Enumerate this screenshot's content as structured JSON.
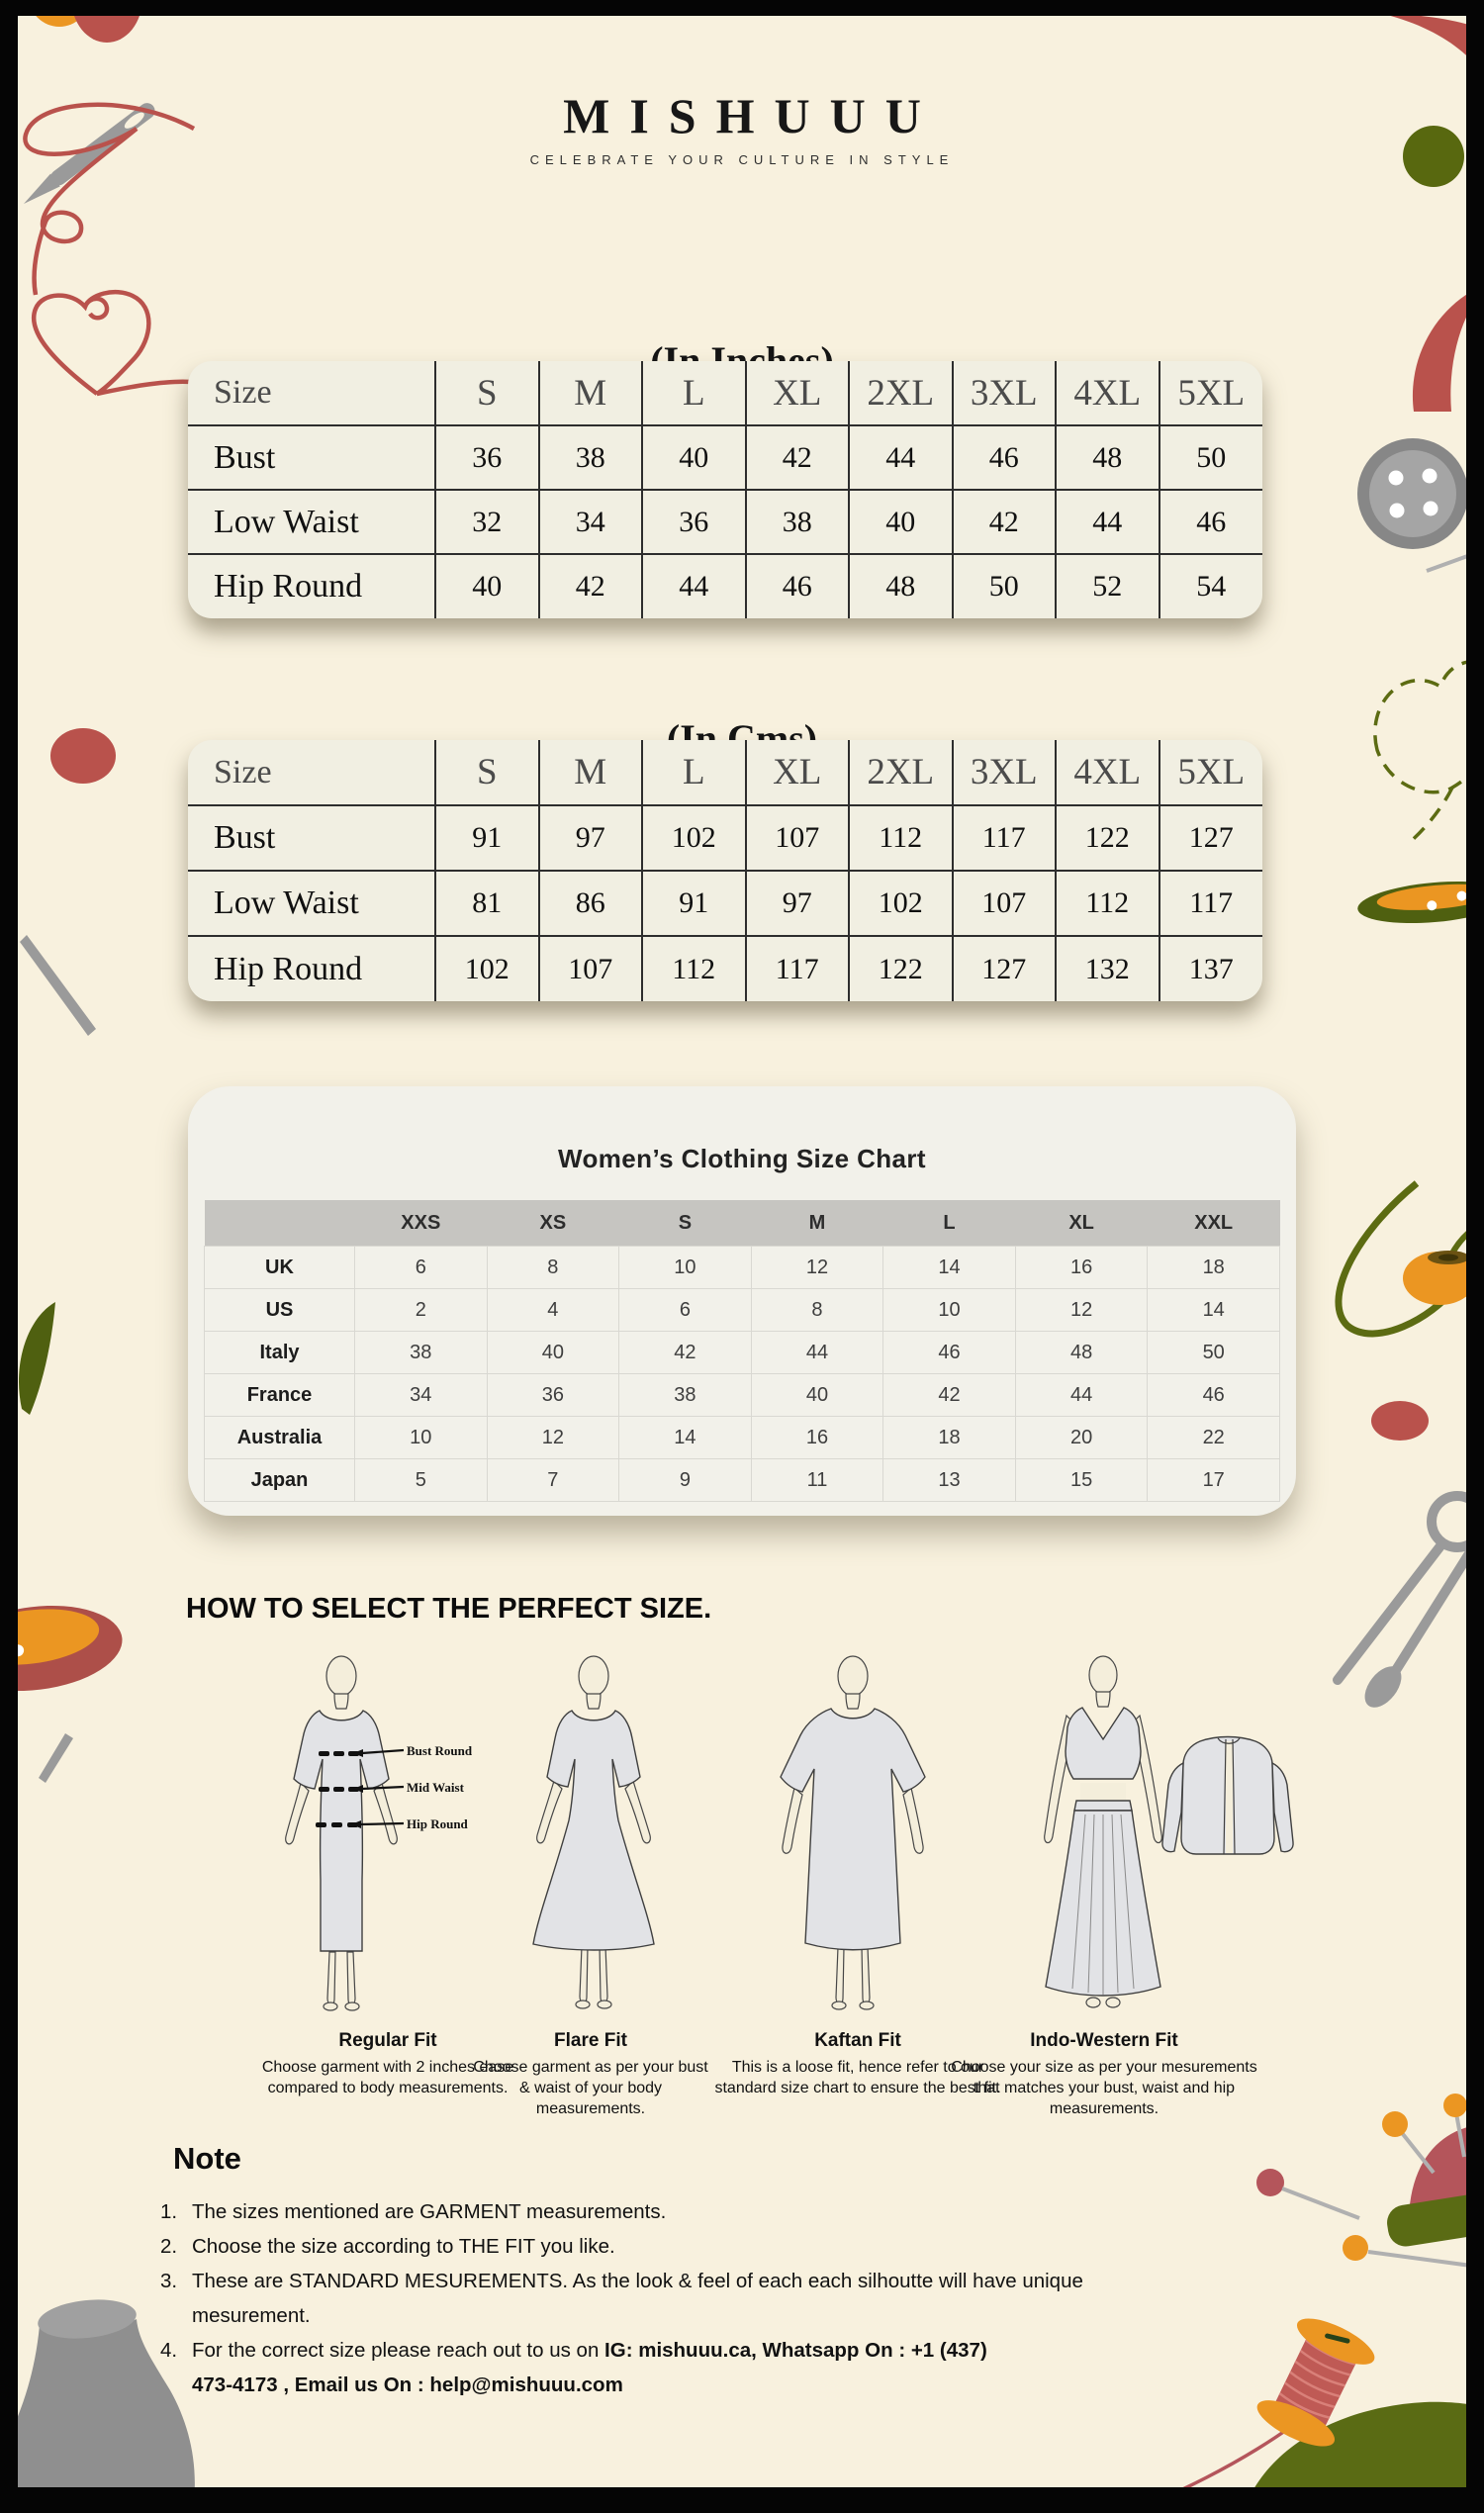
{
  "brand": {
    "logo": "MISHUUU",
    "tagline": "CELEBRATE YOUR CULTURE IN STYLE"
  },
  "inches_table": {
    "title": "(In Inches)",
    "header": [
      "Size",
      "S",
      "M",
      "L",
      "XL",
      "2XL",
      "3XL",
      "4XL",
      "5XL"
    ],
    "rows": [
      {
        "label": "Bust",
        "values": [
          36,
          38,
          40,
          42,
          44,
          46,
          48,
          50
        ]
      },
      {
        "label": "Low Waist",
        "values": [
          32,
          34,
          36,
          38,
          40,
          42,
          44,
          46
        ]
      },
      {
        "label": "Hip Round",
        "values": [
          40,
          42,
          44,
          46,
          48,
          50,
          52,
          54
        ]
      }
    ]
  },
  "cms_table": {
    "title": "(In Cms)",
    "header": [
      "Size",
      "S",
      "M",
      "L",
      "XL",
      "2XL",
      "3XL",
      "4XL",
      "5XL"
    ],
    "rows": [
      {
        "label": "Bust",
        "values": [
          91,
          97,
          102,
          107,
          112,
          117,
          122,
          127
        ]
      },
      {
        "label": "Low Waist",
        "values": [
          81,
          86,
          91,
          97,
          102,
          107,
          112,
          117
        ]
      },
      {
        "label": "Hip Round",
        "values": [
          102,
          107,
          112,
          117,
          122,
          127,
          132,
          137
        ]
      }
    ]
  },
  "womens_chart": {
    "title": "Women’s Clothing Size Chart",
    "header": [
      "",
      "XXS",
      "XS",
      "S",
      "M",
      "L",
      "XL",
      "XXL"
    ],
    "rows": [
      {
        "label": "UK",
        "values": [
          6,
          8,
          10,
          12,
          14,
          16,
          18
        ]
      },
      {
        "label": "US",
        "values": [
          2,
          4,
          6,
          8,
          10,
          12,
          14
        ]
      },
      {
        "label": "Italy",
        "values": [
          38,
          40,
          42,
          44,
          46,
          48,
          50
        ]
      },
      {
        "label": "France",
        "values": [
          34,
          36,
          38,
          40,
          42,
          44,
          46
        ]
      },
      {
        "label": "Australia",
        "values": [
          10,
          12,
          14,
          16,
          18,
          20,
          22
        ]
      },
      {
        "label": "Japan",
        "values": [
          5,
          7,
          9,
          11,
          13,
          15,
          17
        ]
      }
    ]
  },
  "fit_section": {
    "heading": "HOW TO SELECT THE PERFECT SIZE.",
    "measure_labels": [
      "Bust Round",
      "Mid Waist",
      "Hip Round"
    ],
    "fits": [
      {
        "name": "Regular Fit",
        "description": "Choose garment with 2 inches ease compared to body measurements."
      },
      {
        "name": "Flare Fit",
        "description": "Choose garment as per your bust & waist of your body measurements."
      },
      {
        "name": "Kaftan Fit",
        "description": "This is a loose fit, hence refer to our standard size chart to ensure the best fit."
      },
      {
        "name": "Indo-Western Fit",
        "description": "Choose your size as per your mesurements that matches your bust, waist and hip measurements."
      }
    ]
  },
  "note": {
    "heading": "Note",
    "item1": "The sizes mentioned are GARMENT measurements.",
    "item2": "Choose the size according to THE FIT you like.",
    "item3_line1": "These are STANDARD MESUREMENTS. As the look & feel of each each silhoutte will have unique",
    "item3_line2": "mesurement.",
    "item4_prefix": "For the correct size please reach out to us on ",
    "item4_bold_line1": "IG: mishuuu.ca, Whatsapp On : +1 (437)",
    "item4_bold_line2": "473-4173 , Email us On : help@mishuuu.com"
  },
  "decorations": [
    "needle-icon",
    "thread-heart-icon",
    "button-icon",
    "dashed-heart-icon",
    "thread-bobbin-icon",
    "safety-pin-icon",
    "pincushion-icon",
    "thread-spool-icon",
    "mannequin-icon",
    "leaf-icon",
    "pin-icon"
  ],
  "palette": {
    "frame": "#050505",
    "background": "#f8f1de",
    "table_card": "#f1efe2",
    "chart_card": "#f2f1ea",
    "chart_header_band": "#c6c5c1",
    "table_line": "#2d2d2d",
    "red": "#b9524c",
    "orange": "#eb9622",
    "olive": "#5c6b12",
    "gray": "#9a9a9a"
  }
}
